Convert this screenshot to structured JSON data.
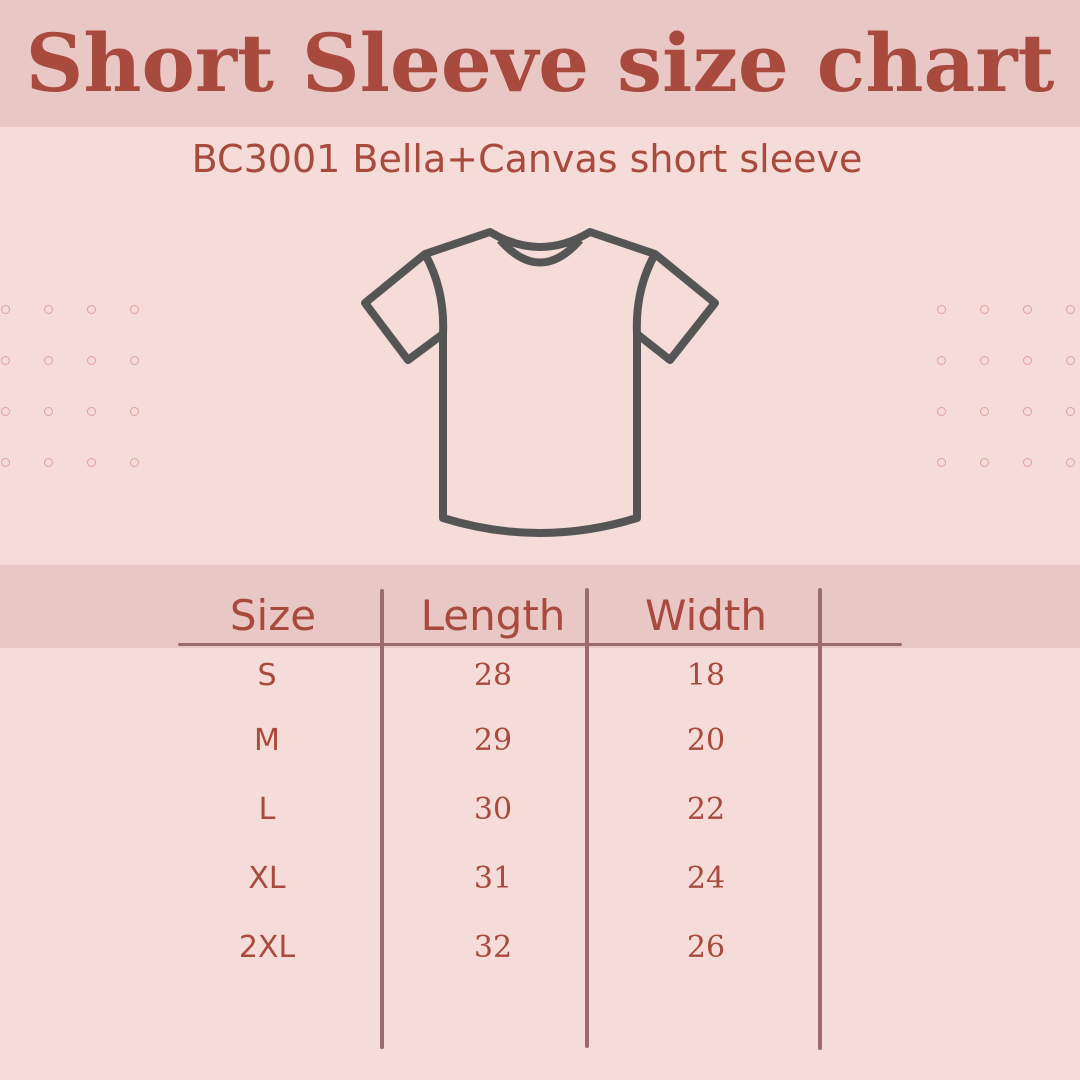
{
  "header": {
    "title": "Short Sleeve size chart",
    "subtitle": "BC3001 Bella+Canvas short sleeve"
  },
  "illustration": {
    "icon": "t-shirt-icon"
  },
  "table": {
    "columns": [
      "Size",
      "Length",
      "Width"
    ],
    "rows": [
      {
        "size": "S",
        "length": "28",
        "width": "18"
      },
      {
        "size": "M",
        "length": "29",
        "width": "20"
      },
      {
        "size": "L",
        "length": "30",
        "width": "22"
      },
      {
        "size": "XL",
        "length": "31",
        "width": "24"
      },
      {
        "size": "2XL",
        "length": "32",
        "width": "26"
      }
    ]
  },
  "colors": {
    "background": "#f5dcd9",
    "band": "#e8c7c4",
    "text": "#a84a3e",
    "lines": "#9a6a6c",
    "shirt_outline": "#555555"
  }
}
